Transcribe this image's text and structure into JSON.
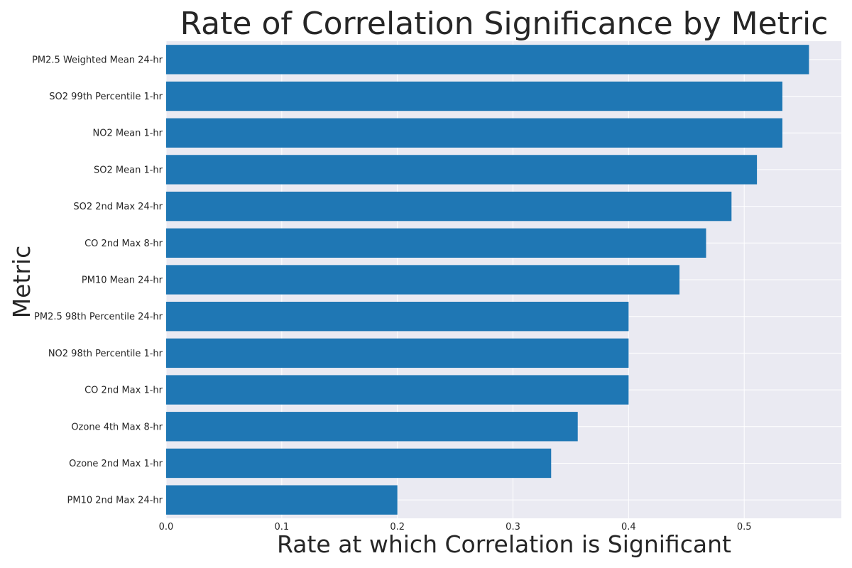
{
  "chart_data": {
    "type": "bar",
    "orientation": "horizontal",
    "title": "Rate of Correlation Significance by Metric",
    "xlabel": "Rate at which Correlation is Significant",
    "ylabel": "Metric",
    "xlim": [
      0,
      0.584
    ],
    "xticks": [
      "0.0",
      "0.1",
      "0.2",
      "0.3",
      "0.4",
      "0.5"
    ],
    "categories": [
      "PM2.5 Weighted Mean 24-hr",
      "SO2 99th Percentile 1-hr",
      "NO2 Mean 1-hr",
      "SO2 Mean 1-hr",
      "SO2 2nd Max 24-hr",
      "CO 2nd Max 8-hr",
      "PM10 Mean 24-hr",
      "PM2.5 98th Percentile 24-hr",
      "NO2 98th Percentile 1-hr",
      "CO 2nd Max 1-hr",
      "Ozone 4th Max 8-hr",
      "Ozone 2nd Max 1-hr",
      "PM10 2nd Max 24-hr"
    ],
    "values": [
      0.556,
      0.533,
      0.533,
      0.511,
      0.489,
      0.467,
      0.444,
      0.4,
      0.4,
      0.4,
      0.356,
      0.333,
      0.2
    ],
    "grid": true,
    "legend": "none",
    "colors": {
      "bar": "#1f77b4",
      "plot_background": "#eaeaf2",
      "grid": "#ffffff",
      "text": "#262626"
    }
  }
}
